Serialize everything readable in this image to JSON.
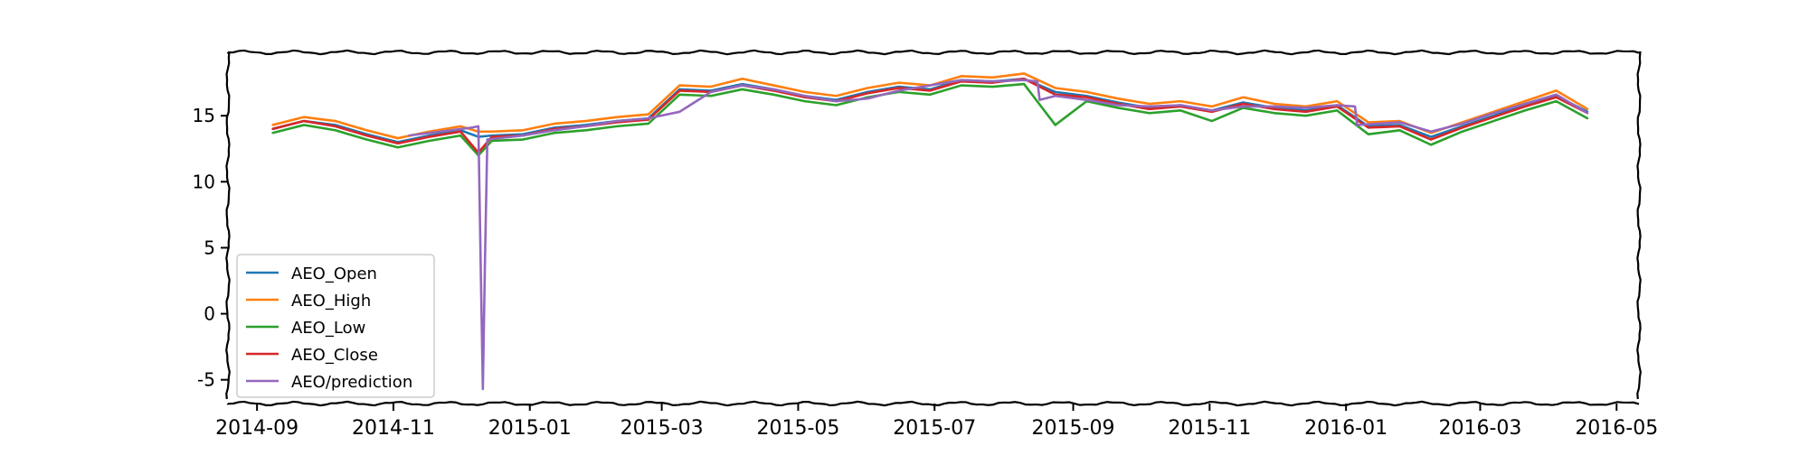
{
  "chart_data": {
    "type": "line",
    "title": "",
    "xlabel": "",
    "ylabel": "",
    "x_range": [
      "2014-08-19",
      "2016-05-11"
    ],
    "ylim": [
      -6.8,
      19.8
    ],
    "y_ticks": [
      {
        "value": 15,
        "label": "15"
      },
      {
        "value": 10,
        "label": "10"
      },
      {
        "value": 5,
        "label": "5"
      },
      {
        "value": 0,
        "label": "0"
      },
      {
        "value": -5,
        "label": "-5"
      }
    ],
    "x_ticks": [
      {
        "value": "2014-09-01",
        "label": "2014-09"
      },
      {
        "value": "2014-11-01",
        "label": "2014-11"
      },
      {
        "value": "2015-01-01",
        "label": "2015-01"
      },
      {
        "value": "2015-03-01",
        "label": "2015-03"
      },
      {
        "value": "2015-05-01",
        "label": "2015-05"
      },
      {
        "value": "2015-07-01",
        "label": "2015-07"
      },
      {
        "value": "2015-09-01",
        "label": "2015-09"
      },
      {
        "value": "2015-11-01",
        "label": "2015-11"
      },
      {
        "value": "2016-01-01",
        "label": "2016-01"
      },
      {
        "value": "2016-03-01",
        "label": "2016-03"
      },
      {
        "value": "2016-05-01",
        "label": "2016-05"
      }
    ],
    "grid": false,
    "legend_position": "lower-left",
    "series": [
      {
        "name": "AEO_Open",
        "color": "#1f77b4",
        "x": [
          "2014-09-08",
          "2014-09-22",
          "2014-10-06",
          "2014-10-20",
          "2014-11-03",
          "2014-11-17",
          "2014-12-01",
          "2014-12-09",
          "2014-12-15",
          "2014-12-29",
          "2015-01-12",
          "2015-01-26",
          "2015-02-09",
          "2015-02-23",
          "2015-03-09",
          "2015-03-23",
          "2015-04-06",
          "2015-04-20",
          "2015-05-04",
          "2015-05-18",
          "2015-06-01",
          "2015-06-15",
          "2015-06-29",
          "2015-07-13",
          "2015-07-27",
          "2015-08-10",
          "2015-08-24",
          "2015-09-07",
          "2015-09-21",
          "2015-10-05",
          "2015-10-19",
          "2015-11-02",
          "2015-11-16",
          "2015-11-30",
          "2015-12-14",
          "2015-12-28",
          "2016-01-11",
          "2016-01-25",
          "2016-02-08",
          "2016-02-22",
          "2016-03-07",
          "2016-03-21",
          "2016-04-04",
          "2016-04-18"
        ],
        "y": [
          14.0,
          14.6,
          14.3,
          13.6,
          13.0,
          13.5,
          13.9,
          13.4,
          13.5,
          13.6,
          14.1,
          14.3,
          14.6,
          14.8,
          17.0,
          16.9,
          17.4,
          17.0,
          16.5,
          16.2,
          16.8,
          17.2,
          17.0,
          17.7,
          17.6,
          17.8,
          16.8,
          16.5,
          16.0,
          15.6,
          15.8,
          15.4,
          16.0,
          15.6,
          15.4,
          15.8,
          14.2,
          14.3,
          13.4,
          14.2,
          15.0,
          15.8,
          16.5,
          15.3
        ]
      },
      {
        "name": "AEO_High",
        "color": "#ff7f0e",
        "x": [
          "2014-09-08",
          "2014-09-22",
          "2014-10-06",
          "2014-10-20",
          "2014-11-03",
          "2014-11-17",
          "2014-12-01",
          "2014-12-09",
          "2014-12-15",
          "2014-12-29",
          "2015-01-12",
          "2015-01-26",
          "2015-02-09",
          "2015-02-23",
          "2015-03-09",
          "2015-03-23",
          "2015-04-06",
          "2015-04-20",
          "2015-05-04",
          "2015-05-18",
          "2015-06-01",
          "2015-06-15",
          "2015-06-29",
          "2015-07-13",
          "2015-07-27",
          "2015-08-10",
          "2015-08-24",
          "2015-09-07",
          "2015-09-21",
          "2015-10-05",
          "2015-10-19",
          "2015-11-02",
          "2015-11-16",
          "2015-11-30",
          "2015-12-14",
          "2015-12-28",
          "2016-01-11",
          "2016-01-25",
          "2016-02-08",
          "2016-02-22",
          "2016-03-07",
          "2016-03-21",
          "2016-04-04",
          "2016-04-18"
        ],
        "y": [
          14.3,
          14.9,
          14.6,
          13.9,
          13.3,
          13.8,
          14.2,
          13.8,
          13.8,
          13.9,
          14.4,
          14.6,
          14.9,
          15.1,
          17.3,
          17.2,
          17.8,
          17.3,
          16.8,
          16.5,
          17.1,
          17.5,
          17.3,
          18.0,
          17.9,
          18.2,
          17.1,
          16.8,
          16.3,
          15.9,
          16.1,
          15.7,
          16.4,
          15.9,
          15.7,
          16.1,
          14.5,
          14.6,
          13.7,
          14.5,
          15.3,
          16.1,
          16.9,
          15.5
        ]
      },
      {
        "name": "AEO_Low",
        "color": "#2ca02c",
        "x": [
          "2014-09-08",
          "2014-09-22",
          "2014-10-06",
          "2014-10-20",
          "2014-11-03",
          "2014-11-17",
          "2014-12-01",
          "2014-12-09",
          "2014-12-15",
          "2014-12-29",
          "2015-01-12",
          "2015-01-26",
          "2015-02-09",
          "2015-02-23",
          "2015-03-09",
          "2015-03-23",
          "2015-04-06",
          "2015-04-20",
          "2015-05-04",
          "2015-05-18",
          "2015-06-01",
          "2015-06-15",
          "2015-06-29",
          "2015-07-13",
          "2015-07-27",
          "2015-08-10",
          "2015-08-24",
          "2015-09-07",
          "2015-09-21",
          "2015-10-05",
          "2015-10-19",
          "2015-11-02",
          "2015-11-16",
          "2015-11-30",
          "2015-12-14",
          "2015-12-28",
          "2016-01-11",
          "2016-01-25",
          "2016-02-08",
          "2016-02-22",
          "2016-03-07",
          "2016-03-21",
          "2016-04-04",
          "2016-04-18"
        ],
        "y": [
          13.7,
          14.3,
          13.9,
          13.2,
          12.6,
          13.1,
          13.5,
          12.0,
          13.1,
          13.2,
          13.7,
          13.9,
          14.2,
          14.4,
          16.6,
          16.5,
          17.0,
          16.6,
          16.1,
          15.8,
          16.4,
          16.8,
          16.6,
          17.3,
          17.2,
          17.4,
          14.3,
          16.1,
          15.6,
          15.2,
          15.4,
          14.6,
          15.6,
          15.2,
          15.0,
          15.4,
          13.6,
          13.9,
          12.8,
          13.8,
          14.6,
          15.4,
          16.1,
          14.8
        ]
      },
      {
        "name": "AEO_Close",
        "color": "#d62728",
        "x": [
          "2014-09-08",
          "2014-09-22",
          "2014-10-06",
          "2014-10-20",
          "2014-11-03",
          "2014-11-17",
          "2014-12-01",
          "2014-12-09",
          "2014-12-15",
          "2014-12-29",
          "2015-01-12",
          "2015-01-26",
          "2015-02-09",
          "2015-02-23",
          "2015-03-09",
          "2015-03-23",
          "2015-04-06",
          "2015-04-20",
          "2015-05-04",
          "2015-05-18",
          "2015-06-01",
          "2015-06-15",
          "2015-06-29",
          "2015-07-13",
          "2015-07-27",
          "2015-08-10",
          "2015-08-24",
          "2015-09-07",
          "2015-09-21",
          "2015-10-05",
          "2015-10-19",
          "2015-11-02",
          "2015-11-16",
          "2015-11-30",
          "2015-12-14",
          "2015-12-28",
          "2016-01-11",
          "2016-01-25",
          "2016-02-08",
          "2016-02-22",
          "2016-03-07",
          "2016-03-21",
          "2016-04-04",
          "2016-04-18"
        ],
        "y": [
          14.0,
          14.6,
          14.2,
          13.5,
          12.9,
          13.4,
          13.8,
          12.2,
          13.4,
          13.5,
          14.0,
          14.2,
          14.5,
          14.7,
          16.9,
          16.8,
          17.3,
          16.9,
          16.4,
          16.1,
          16.7,
          17.1,
          16.9,
          17.6,
          17.5,
          17.8,
          16.6,
          16.4,
          15.9,
          15.5,
          15.7,
          15.3,
          15.9,
          15.5,
          15.3,
          15.7,
          14.1,
          14.2,
          13.2,
          14.1,
          14.9,
          15.7,
          16.4,
          15.2
        ]
      },
      {
        "name": "AEO/prediction",
        "color": "#9467bd",
        "x": [
          "2014-11-08",
          "2014-11-22",
          "2014-12-06",
          "2014-12-09",
          "2014-12-10",
          "2014-12-11",
          "2014-12-12",
          "2014-12-13",
          "2014-12-29",
          "2015-01-12",
          "2015-01-26",
          "2015-02-09",
          "2015-02-23",
          "2015-03-09",
          "2015-03-23",
          "2015-04-06",
          "2015-04-20",
          "2015-05-04",
          "2015-05-18",
          "2015-06-01",
          "2015-06-15",
          "2015-06-29",
          "2015-07-13",
          "2015-07-27",
          "2015-08-10",
          "2015-08-16",
          "2015-08-17",
          "2015-08-24",
          "2015-09-07",
          "2015-09-21",
          "2015-10-05",
          "2015-10-19",
          "2015-11-02",
          "2015-11-16",
          "2015-11-30",
          "2015-12-14",
          "2015-12-28",
          "2016-01-05",
          "2016-01-06",
          "2016-01-25",
          "2016-02-08",
          "2016-02-22",
          "2016-03-07",
          "2016-03-21",
          "2016-04-04",
          "2016-04-18"
        ],
        "y": [
          13.5,
          13.8,
          14.1,
          14.2,
          4.0,
          -5.7,
          4.5,
          13.2,
          13.5,
          13.9,
          14.2,
          14.6,
          14.8,
          15.3,
          16.8,
          17.3,
          17.0,
          16.5,
          16.1,
          16.3,
          16.9,
          17.3,
          17.7,
          17.6,
          17.7,
          17.6,
          16.2,
          16.5,
          16.2,
          15.8,
          15.7,
          15.8,
          15.4,
          15.7,
          15.7,
          15.6,
          15.8,
          15.7,
          14.3,
          14.5,
          13.8,
          14.4,
          15.2,
          15.9,
          16.6,
          15.2
        ]
      }
    ]
  }
}
